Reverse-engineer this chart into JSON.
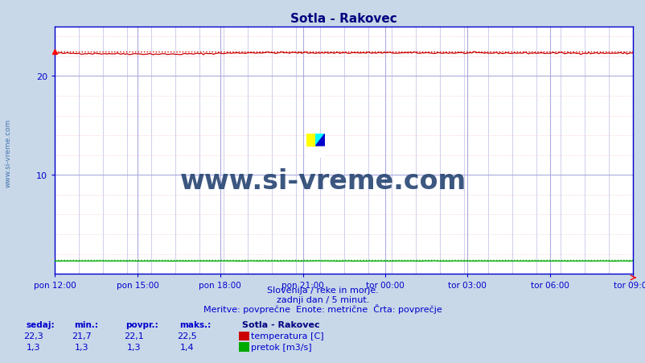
{
  "title": "Sotla - Rakovec",
  "bg_color": "#c8d8e8",
  "plot_bg_color": "#ffffff",
  "grid_v_color": "#c8c8e8",
  "grid_h_color": "#f0c8c8",
  "spine_color": "#0000cc",
  "x_labels": [
    "pon 12:00",
    "pon 15:00",
    "pon 18:00",
    "pon 21:00",
    "tor 00:00",
    "tor 03:00",
    "tor 06:00",
    "tor 09:00"
  ],
  "x_ticks_norm": [
    0.0,
    0.143,
    0.286,
    0.429,
    0.571,
    0.714,
    0.857,
    1.0
  ],
  "y_min": 0,
  "y_max": 25,
  "y_ticks": [
    10,
    20
  ],
  "temp_color": "#cc0000",
  "flow_color": "#00aa00",
  "temp_min": 21.7,
  "temp_max": 22.5,
  "temp_avg": 22.1,
  "temp_value": 22.3,
  "flow_min": 1.3,
  "flow_max": 1.4,
  "flow_avg": 1.3,
  "flow_value": 1.3,
  "subtitle1": "Slovenija / reke in morje.",
  "subtitle2": "zadnji dan / 5 minut.",
  "subtitle3": "Meritve: povprečne  Enote: metrične  Črta: povprečje",
  "legend_title": "Sotla - Rakovec",
  "legend_temp": "temperatura [C]",
  "legend_flow": "pretok [m3/s]",
  "watermark": "www.si-vreme.com",
  "label_sedaj": "sedaj:",
  "label_min": "min.:",
  "label_povpr": "povpr.:",
  "label_maks": "maks.:",
  "title_color": "#000080",
  "text_color": "#0000cc",
  "watermark_color": "#1a3a6a",
  "n_points": 289
}
